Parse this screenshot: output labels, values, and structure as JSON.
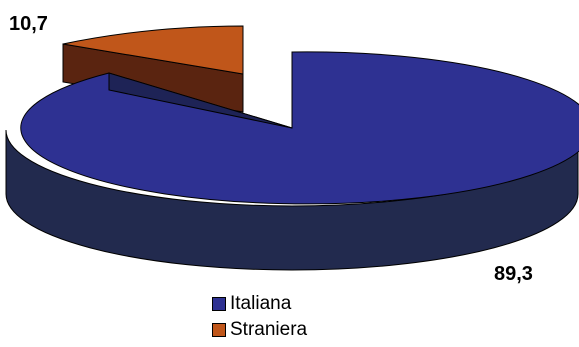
{
  "chart_data": {
    "type": "pie",
    "style": "3d-exploded",
    "labels": [
      "Italiana",
      "Straniera"
    ],
    "values": [
      89.3,
      10.7
    ],
    "value_labels": [
      "89,3",
      "10,7"
    ],
    "colors": [
      "#2E3192",
      "#C0561A"
    ],
    "legend_position": "bottom"
  }
}
